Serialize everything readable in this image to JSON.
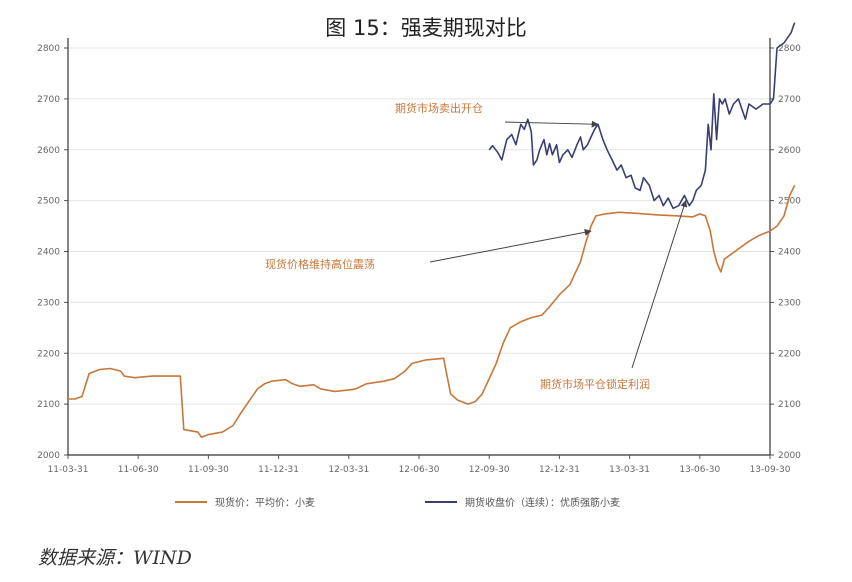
{
  "title": "图 15：强麦期现对比",
  "source": "数据来源：WIND",
  "chart_data": {
    "type": "line",
    "title": "图 15：强麦期现对比",
    "y_left": {
      "ticks": [
        2000,
        2100,
        2200,
        2300,
        2400,
        2500,
        2600,
        2700,
        2800
      ],
      "range": [
        2000,
        2800
      ]
    },
    "y_right": {
      "ticks": [
        2000,
        2100,
        2200,
        2300,
        2400,
        2500,
        2600,
        2700,
        2800
      ],
      "range": [
        2000,
        2800
      ]
    },
    "x_ticks": [
      "11-03-31",
      "11-06-30",
      "11-09-30",
      "11-12-31",
      "12-03-31",
      "12-06-30",
      "12-09-30",
      "12-12-31",
      "13-03-31",
      "13-06-30",
      "13-09-30"
    ],
    "x_range": [
      0,
      10
    ],
    "grid": true,
    "legend_position": "bottom",
    "series": [
      {
        "name": "现货价：平均价：小麦",
        "color": "#c8773a",
        "points": [
          [
            0.0,
            2110
          ],
          [
            0.1,
            2110
          ],
          [
            0.2,
            2115
          ],
          [
            0.3,
            2160
          ],
          [
            0.45,
            2168
          ],
          [
            0.6,
            2170
          ],
          [
            0.75,
            2165
          ],
          [
            0.8,
            2155
          ],
          [
            0.95,
            2152
          ],
          [
            1.2,
            2155
          ],
          [
            1.5,
            2155
          ],
          [
            1.6,
            2155
          ],
          [
            1.65,
            2050
          ],
          [
            1.85,
            2045
          ],
          [
            1.9,
            2035
          ],
          [
            2.0,
            2040
          ],
          [
            2.2,
            2045
          ],
          [
            2.35,
            2058
          ],
          [
            2.45,
            2080
          ],
          [
            2.55,
            2100
          ],
          [
            2.65,
            2120
          ],
          [
            2.7,
            2130
          ],
          [
            2.8,
            2140
          ],
          [
            2.9,
            2145
          ],
          [
            3.1,
            2148
          ],
          [
            3.2,
            2140
          ],
          [
            3.3,
            2135
          ],
          [
            3.5,
            2138
          ],
          [
            3.6,
            2130
          ],
          [
            3.8,
            2125
          ],
          [
            4.0,
            2128
          ],
          [
            4.1,
            2130
          ],
          [
            4.25,
            2140
          ],
          [
            4.5,
            2145
          ],
          [
            4.65,
            2150
          ],
          [
            4.8,
            2165
          ],
          [
            4.9,
            2180
          ],
          [
            5.1,
            2187
          ],
          [
            5.35,
            2190
          ],
          [
            5.45,
            2120
          ],
          [
            5.55,
            2108
          ],
          [
            5.7,
            2100
          ],
          [
            5.8,
            2105
          ],
          [
            5.9,
            2120
          ],
          [
            6.0,
            2150
          ],
          [
            6.1,
            2180
          ],
          [
            6.2,
            2220
          ],
          [
            6.3,
            2250
          ],
          [
            6.45,
            2262
          ],
          [
            6.6,
            2270
          ],
          [
            6.75,
            2275
          ],
          [
            6.85,
            2290
          ],
          [
            7.0,
            2315
          ],
          [
            7.15,
            2335
          ],
          [
            7.3,
            2380
          ],
          [
            7.38,
            2420
          ],
          [
            7.45,
            2450
          ],
          [
            7.52,
            2470
          ],
          [
            7.65,
            2474
          ],
          [
            7.85,
            2477
          ],
          [
            8.1,
            2475
          ],
          [
            8.4,
            2472
          ],
          [
            8.7,
            2470
          ],
          [
            8.9,
            2468
          ],
          [
            9.0,
            2474
          ],
          [
            9.08,
            2470
          ],
          [
            9.15,
            2440
          ],
          [
            9.2,
            2400
          ],
          [
            9.25,
            2375
          ],
          [
            9.3,
            2360
          ],
          [
            9.35,
            2385
          ],
          [
            9.5,
            2400
          ],
          [
            9.7,
            2420
          ],
          [
            9.85,
            2432
          ],
          [
            10.0,
            2440
          ],
          [
            10.1,
            2450
          ],
          [
            10.2,
            2470
          ],
          [
            10.28,
            2510
          ],
          [
            10.35,
            2530
          ]
        ]
      },
      {
        "name": "期货收盘价（连续）：优质强筋小麦",
        "color": "#3a3f70",
        "points": [
          [
            6.0,
            2600
          ],
          [
            6.05,
            2608
          ],
          [
            6.12,
            2595
          ],
          [
            6.18,
            2580
          ],
          [
            6.25,
            2620
          ],
          [
            6.32,
            2630
          ],
          [
            6.38,
            2610
          ],
          [
            6.45,
            2650
          ],
          [
            6.5,
            2640
          ],
          [
            6.55,
            2660
          ],
          [
            6.6,
            2635
          ],
          [
            6.63,
            2570
          ],
          [
            6.68,
            2580
          ],
          [
            6.72,
            2600
          ],
          [
            6.78,
            2620
          ],
          [
            6.82,
            2590
          ],
          [
            6.86,
            2612
          ],
          [
            6.9,
            2590
          ],
          [
            6.96,
            2610
          ],
          [
            7.0,
            2575
          ],
          [
            7.05,
            2590
          ],
          [
            7.12,
            2600
          ],
          [
            7.18,
            2585
          ],
          [
            7.25,
            2610
          ],
          [
            7.3,
            2625
          ],
          [
            7.34,
            2600
          ],
          [
            7.4,
            2610
          ],
          [
            7.45,
            2625
          ],
          [
            7.5,
            2640
          ],
          [
            7.55,
            2650
          ],
          [
            7.62,
            2620
          ],
          [
            7.68,
            2600
          ],
          [
            7.75,
            2580
          ],
          [
            7.82,
            2560
          ],
          [
            7.88,
            2570
          ],
          [
            7.95,
            2545
          ],
          [
            8.02,
            2550
          ],
          [
            8.08,
            2525
          ],
          [
            8.15,
            2520
          ],
          [
            8.2,
            2545
          ],
          [
            8.28,
            2530
          ],
          [
            8.35,
            2500
          ],
          [
            8.42,
            2510
          ],
          [
            8.48,
            2490
          ],
          [
            8.55,
            2505
          ],
          [
            8.62,
            2485
          ],
          [
            8.7,
            2490
          ],
          [
            8.78,
            2510
          ],
          [
            8.85,
            2490
          ],
          [
            8.9,
            2500
          ],
          [
            8.95,
            2520
          ],
          [
            9.02,
            2530
          ],
          [
            9.08,
            2560
          ],
          [
            9.12,
            2650
          ],
          [
            9.16,
            2600
          ],
          [
            9.2,
            2710
          ],
          [
            9.24,
            2620
          ],
          [
            9.28,
            2700
          ],
          [
            9.32,
            2690
          ],
          [
            9.36,
            2700
          ],
          [
            9.42,
            2670
          ],
          [
            9.48,
            2690
          ],
          [
            9.55,
            2700
          ],
          [
            9.6,
            2680
          ],
          [
            9.65,
            2660
          ],
          [
            9.7,
            2690
          ],
          [
            9.8,
            2680
          ],
          [
            9.9,
            2690
          ],
          [
            10.0,
            2690
          ],
          [
            10.05,
            2700
          ],
          [
            10.1,
            2800
          ],
          [
            10.2,
            2810
          ],
          [
            10.3,
            2830
          ],
          [
            10.35,
            2850
          ]
        ]
      }
    ],
    "annotations": [
      {
        "text": "期货市场卖出开仓",
        "color": "#c8773a",
        "target": [
          7.55,
          2650
        ]
      },
      {
        "text": "现货价格维持高位震荡",
        "color": "#c8773a",
        "target": [
          7.45,
          2440
        ]
      },
      {
        "text": "期货市场平仓锁定利润",
        "color": "#c8773a",
        "target": [
          8.8,
          2500
        ]
      }
    ]
  }
}
